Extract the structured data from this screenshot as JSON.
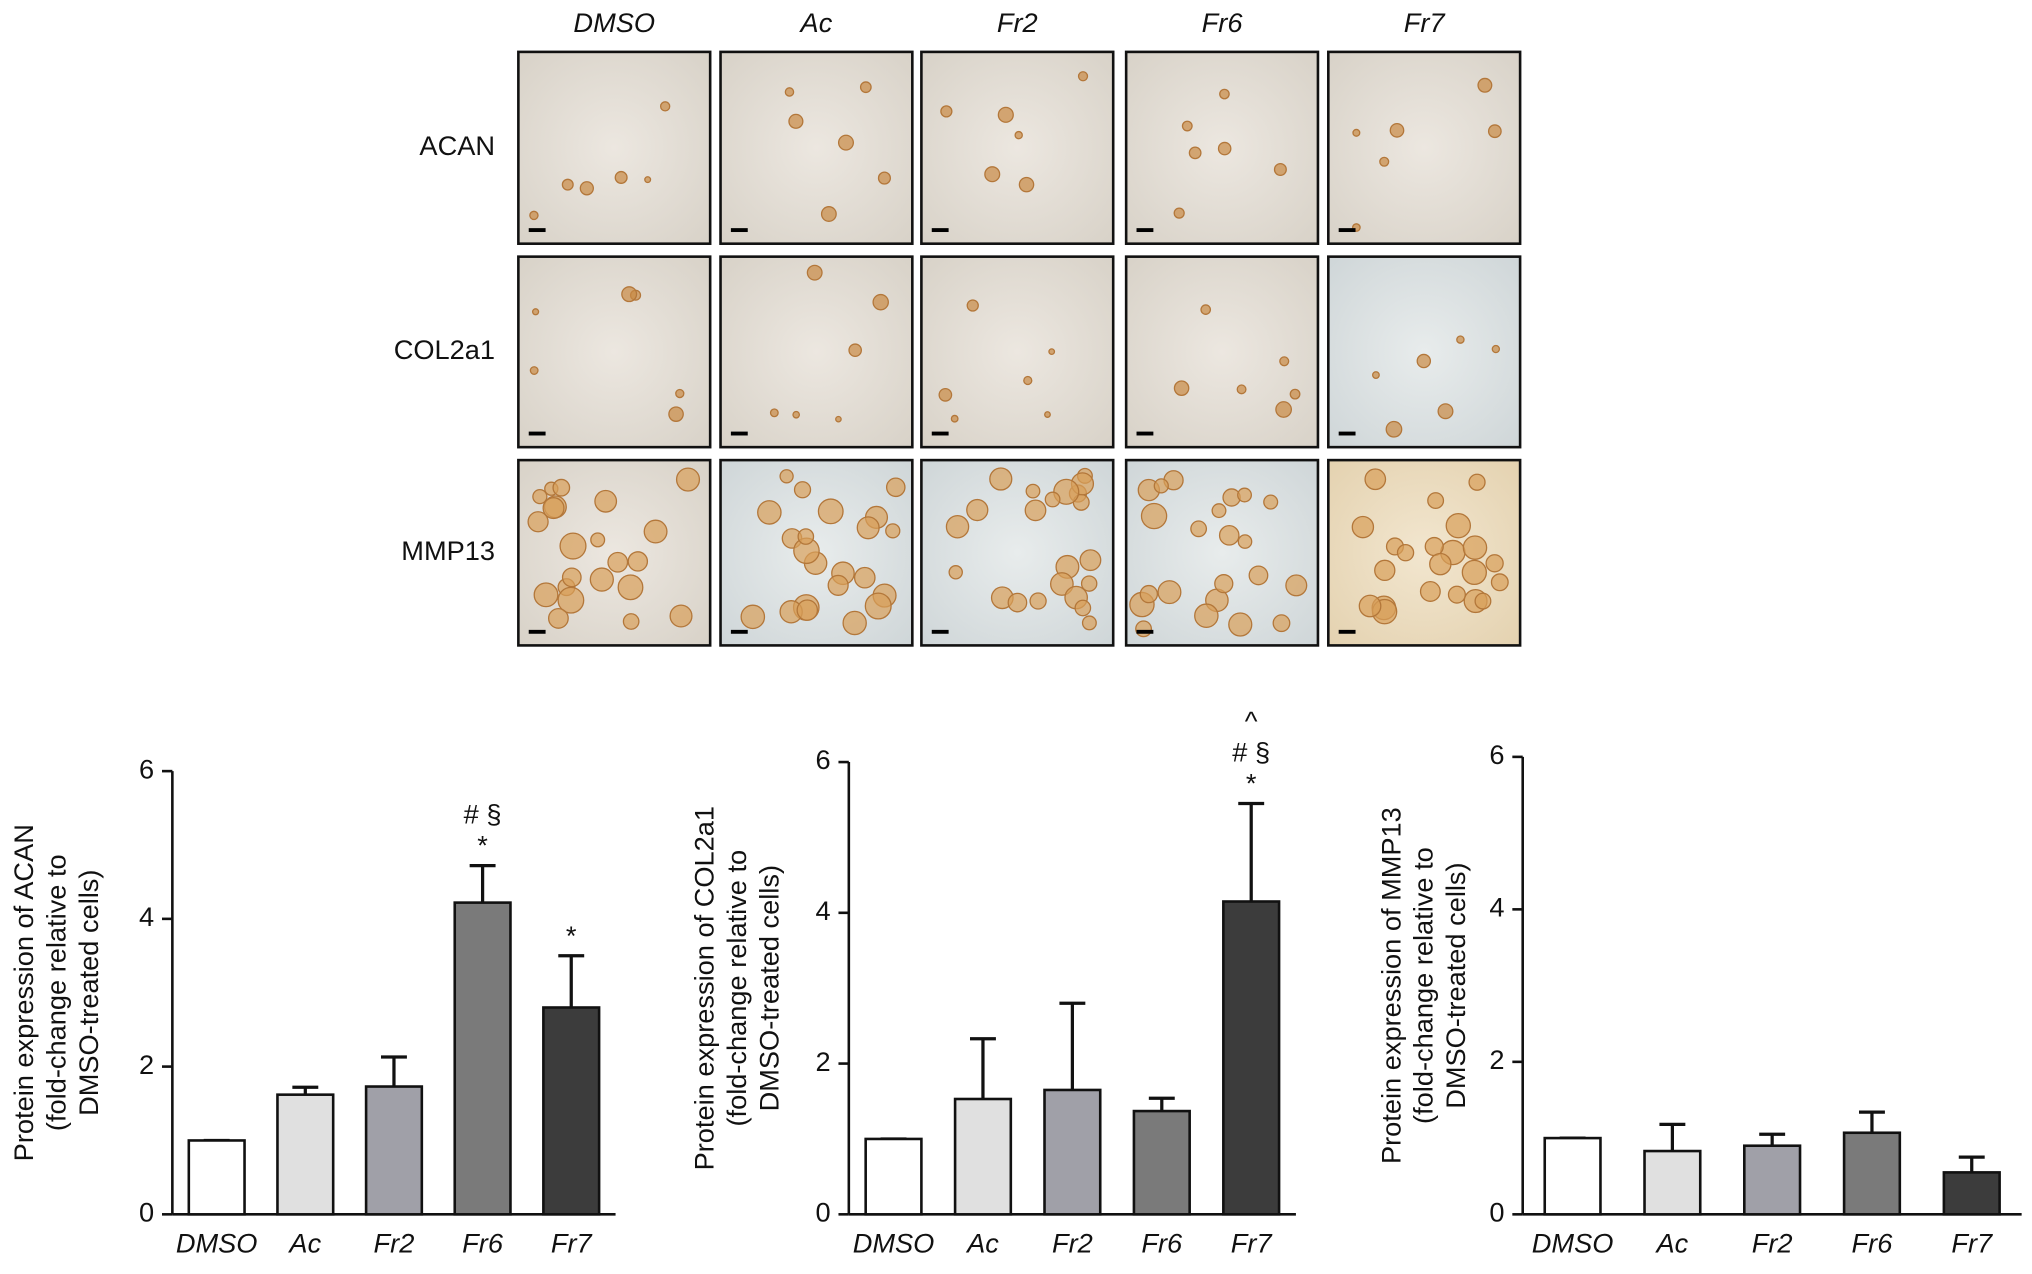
{
  "image_panel": {
    "columns": [
      "DMSO",
      "Ac",
      "Fr2",
      "Fr6",
      "Fr7"
    ],
    "rows": [
      "ACAN",
      "COL2a1",
      "MMP13"
    ]
  },
  "chart_data": [
    {
      "type": "bar",
      "ylabel": [
        "Protein expression of ACAN",
        "(fold-change relative to",
        "DMSO-treated cells)"
      ],
      "categories": [
        "DMSO",
        "Ac",
        "Fr2",
        "Fr6",
        "Fr7"
      ],
      "values": [
        1.0,
        1.62,
        1.73,
        4.22,
        2.8
      ],
      "errors": [
        0,
        0.1,
        0.4,
        0.5,
        0.7
      ],
      "colors": [
        "#ffffff",
        "#e0e0e0",
        "#a0a0a8",
        "#7a7a7a",
        "#3c3c3c"
      ],
      "annotations": [
        [],
        [],
        [],
        [
          "# §",
          "*"
        ],
        [
          "*"
        ]
      ],
      "ylim": [
        0,
        6
      ],
      "yticks": [
        0,
        2,
        4,
        6
      ]
    },
    {
      "type": "bar",
      "ylabel": [
        "Protein expression of COL2a1",
        "(fold-change relative to",
        "DMSO-treated cells)"
      ],
      "categories": [
        "DMSO",
        "Ac",
        "Fr2",
        "Fr6",
        "Fr7"
      ],
      "values": [
        1.0,
        1.53,
        1.65,
        1.37,
        4.15
      ],
      "errors": [
        0,
        0.8,
        1.15,
        0.17,
        1.3
      ],
      "colors": [
        "#ffffff",
        "#e0e0e0",
        "#a0a0a8",
        "#7a7a7a",
        "#3c3c3c"
      ],
      "annotations": [
        [],
        [],
        [],
        [],
        [
          "^",
          "# §",
          "*"
        ]
      ],
      "ylim": [
        0,
        6
      ],
      "yticks": [
        0,
        2,
        4,
        6
      ]
    },
    {
      "type": "bar",
      "ylabel": [
        "Protein expression of MMP13",
        "(fold-change relative to",
        "DMSO-treated cells)"
      ],
      "categories": [
        "DMSO",
        "Ac",
        "Fr2",
        "Fr6",
        "Fr7"
      ],
      "values": [
        1.0,
        0.83,
        0.9,
        1.07,
        0.55
      ],
      "errors": [
        0,
        0.35,
        0.15,
        0.27,
        0.2
      ],
      "colors": [
        "#ffffff",
        "#e0e0e0",
        "#a0a0a8",
        "#7a7a7a",
        "#3c3c3c"
      ],
      "annotations": [
        [],
        [],
        [],
        [],
        []
      ],
      "ylim": [
        0,
        6
      ],
      "yticks": [
        0,
        2,
        4,
        6
      ]
    }
  ]
}
